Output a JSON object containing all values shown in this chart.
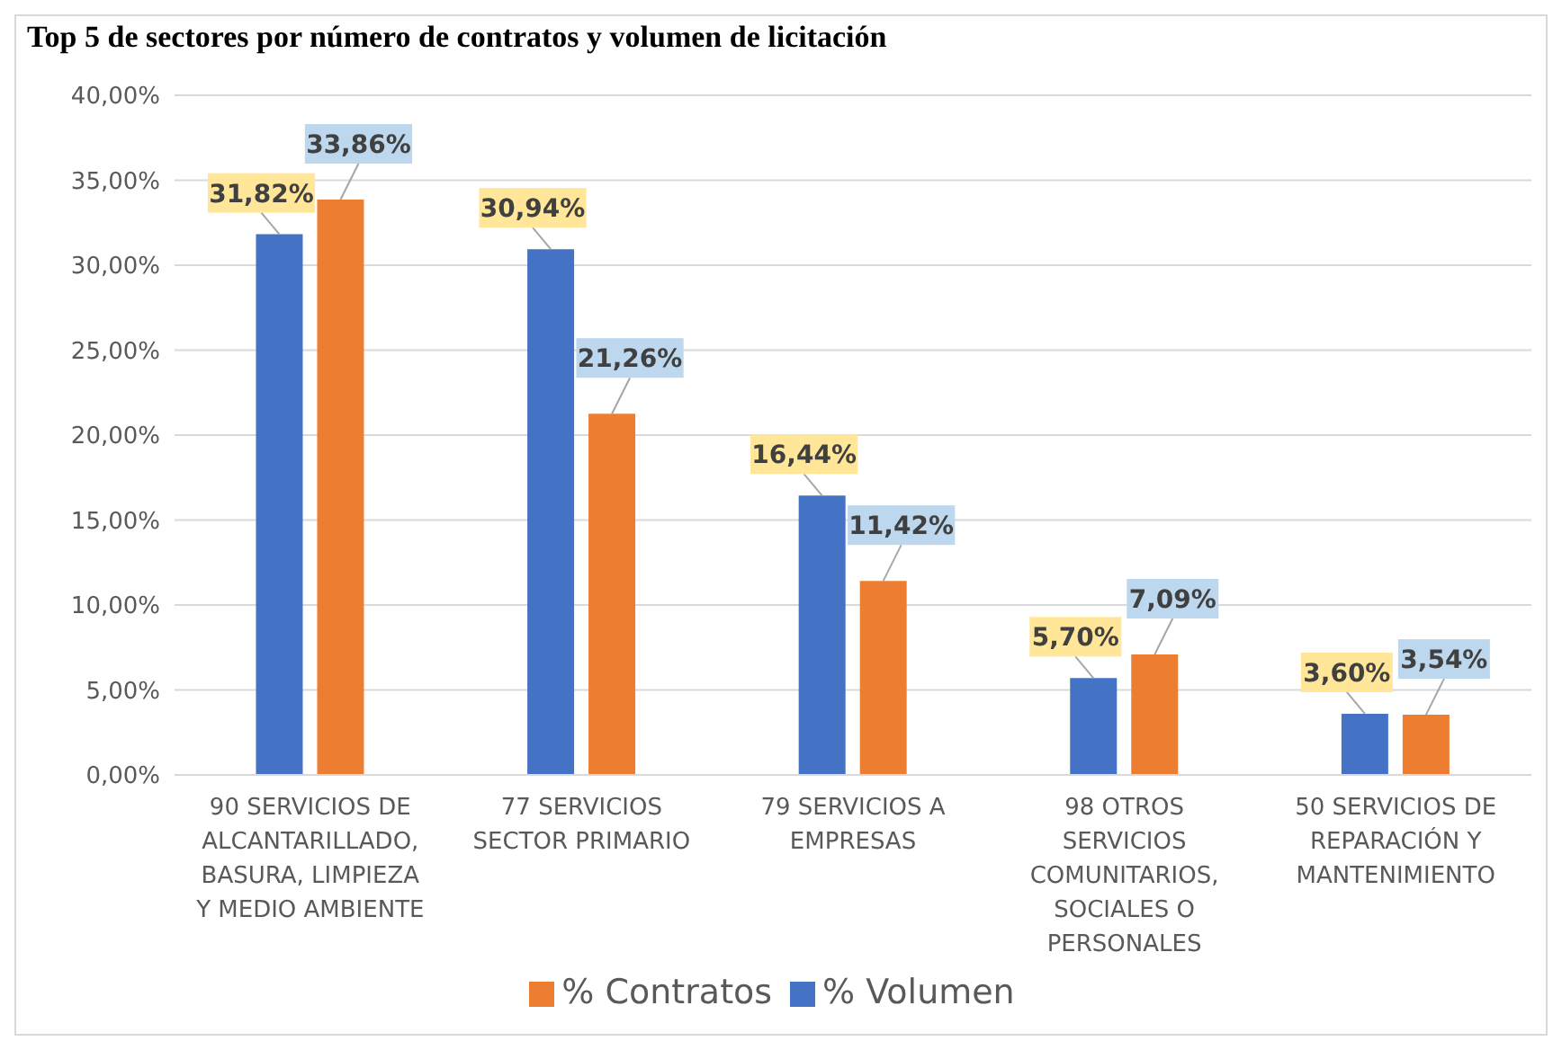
{
  "chart_data": {
    "type": "bar",
    "title": "Top 5 de sectores por número de contratos y volumen de licitación",
    "categories": [
      "90 SERVICIOS DE ALCANTARILLADO, BASURA, LIMPIEZA Y MEDIO AMBIENTE",
      "77 SERVICIOS SECTOR PRIMARIO",
      "79 SERVICIOS A EMPRESAS",
      "98 OTROS SERVICIOS COMUNITARIOS, SOCIALES O PERSONALES",
      "50 SERVICIOS DE REPARACIÓN Y MANTENIMIENTO"
    ],
    "series": [
      {
        "name": "% Volumen",
        "color": "#4472c4",
        "values": [
          31.82,
          30.94,
          16.44,
          5.7,
          3.6
        ],
        "value_labels": [
          "31,82%",
          "30,94%",
          "16,44%",
          "5,70%",
          "3,60%"
        ]
      },
      {
        "name": "% Contratos",
        "color": "#ed7d31",
        "values": [
          33.86,
          21.26,
          11.42,
          7.09,
          3.54
        ],
        "value_labels": [
          "33,86%",
          "21,26%",
          "11,42%",
          "7,09%",
          "3,54%"
        ]
      }
    ],
    "ylim": [
      0,
      40
    ],
    "yticks": [
      {
        "value": 0,
        "label": "0,00%"
      },
      {
        "value": 5,
        "label": "5,00%"
      },
      {
        "value": 10,
        "label": "10,00%"
      },
      {
        "value": 15,
        "label": "15,00%"
      },
      {
        "value": 20,
        "label": "20,00%"
      },
      {
        "value": 25,
        "label": "25,00%"
      },
      {
        "value": 30,
        "label": "30,00%"
      },
      {
        "value": 35,
        "label": "35,00%"
      },
      {
        "value": 40,
        "label": "40,00%"
      }
    ],
    "grid": "y",
    "legend": "bottom"
  }
}
